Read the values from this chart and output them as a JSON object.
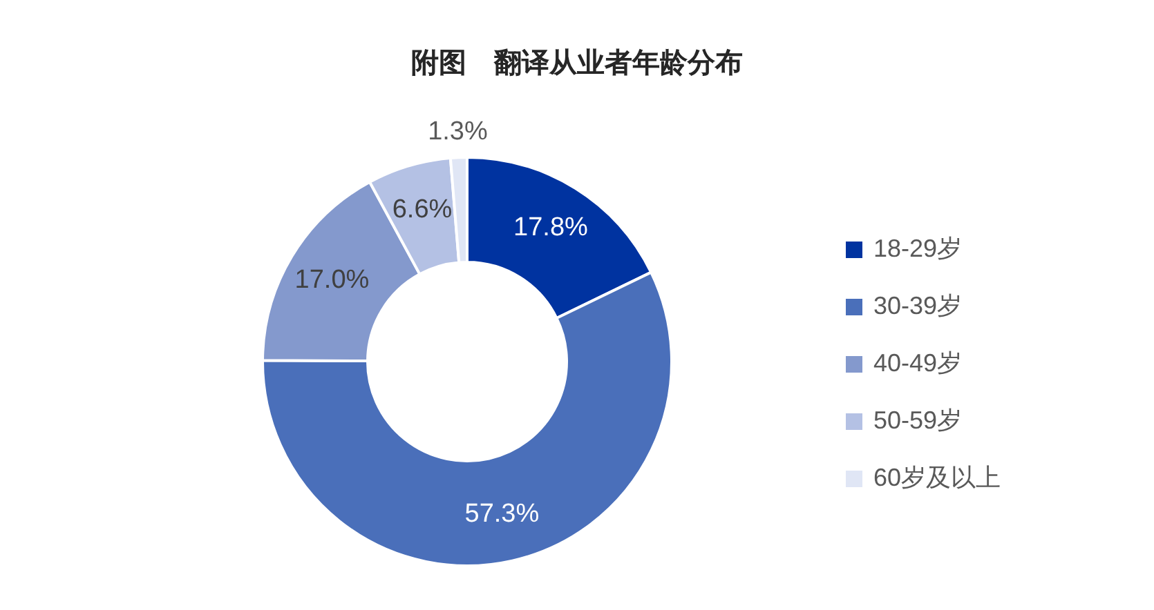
{
  "chart_data": {
    "type": "donut",
    "title": "附图　翻译从业者年龄分布",
    "categories": [
      "18-29岁",
      "30-39岁",
      "40-49岁",
      "50-59岁",
      "60岁及以上"
    ],
    "values": [
      17.8,
      57.3,
      17.0,
      6.6,
      1.3
    ],
    "value_labels": [
      "17.8%",
      "57.3%",
      "17.0%",
      "6.6%",
      "1.3%"
    ],
    "colors": [
      "#0033a0",
      "#4a6fba",
      "#8499cd",
      "#b4c1e4",
      "#e0e6f5"
    ],
    "legend": "right"
  }
}
